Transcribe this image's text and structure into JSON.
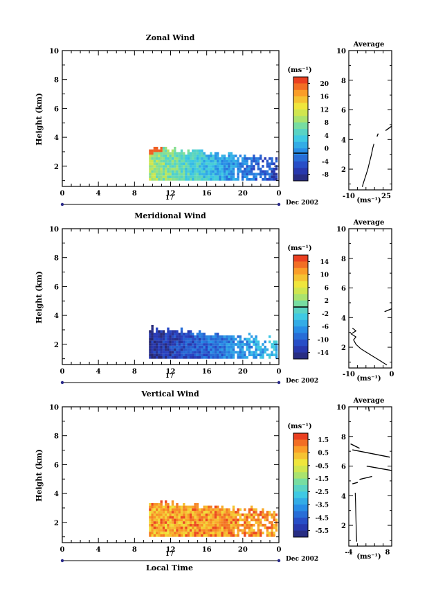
{
  "chart_data": [
    {
      "type": "heatmap",
      "title": "Zonal Wind",
      "ylabel": "Height (km)",
      "unit": "(ms⁻¹)",
      "xlim": [
        0,
        24
      ],
      "ylim": [
        0.6,
        10
      ],
      "xticks": [
        "0",
        "4",
        "8",
        "12",
        "16",
        "20",
        "0"
      ],
      "yticks": [
        "2",
        "4",
        "6",
        "8",
        "10"
      ],
      "colorbar": {
        "min": -8,
        "max": 22,
        "ticks": [
          "20",
          "16",
          "12",
          "8",
          "4",
          "0",
          "-4",
          "-8"
        ],
        "zero_line": 0
      },
      "date_bar": {
        "day": "17",
        "label": "Dec 2002"
      },
      "fields": {
        "h_top": [
          3.2,
          2.4
        ],
        "v_base": 10,
        "v_end": -4
      },
      "average": {
        "title": "Average",
        "xlim": [
          -10,
          25
        ],
        "xticks": [
          "-10",
          "25"
        ],
        "yticks": [
          "2",
          "4",
          "6",
          "8",
          "10"
        ],
        "xlabel": "(ms⁻¹)",
        "profile": [
          [
            1,
            0.8
          ],
          [
            2,
            1.1
          ],
          [
            4,
            1.6
          ],
          [
            5.5,
            2
          ],
          [
            7,
            2.5
          ],
          [
            8.5,
            3
          ],
          [
            9.5,
            3.4
          ],
          [
            10.5,
            3.7
          ]
        ],
        "segments": [
          [
            [
              13,
              4.2
            ],
            [
              14,
              4.4
            ]
          ],
          [
            [
              20,
              4.6
            ],
            [
              25,
              4.9
            ]
          ]
        ]
      }
    },
    {
      "type": "heatmap",
      "title": "Meridional Wind",
      "ylabel": "Height (km)",
      "unit": "(ms⁻¹)",
      "xlim": [
        0,
        24
      ],
      "ylim": [
        0.6,
        10
      ],
      "xticks": [
        "0",
        "4",
        "8",
        "12",
        "16",
        "20",
        "0"
      ],
      "yticks": [
        "2",
        "4",
        "6",
        "8",
        "10"
      ],
      "colorbar": {
        "min": -16,
        "max": 16,
        "ticks": [
          "14",
          "10",
          "6",
          "2",
          "-2",
          "-6",
          "-10",
          "-14"
        ],
        "zero_line": 0
      },
      "date_bar": {
        "day": "17",
        "label": "Dec 2002"
      },
      "fields": {
        "h_top": [
          3.0,
          2.3
        ],
        "v_base": -14,
        "v_end": -4
      },
      "average": {
        "title": "Average",
        "xlim": [
          -18,
          0
        ],
        "xticks": [
          "-10",
          "0"
        ],
        "yticks": [
          "2",
          "4",
          "6",
          "8",
          "10"
        ],
        "xlabel": "(ms⁻¹)",
        "profile": [
          [
            -2,
            0.8
          ],
          [
            -5,
            1.1
          ],
          [
            -9,
            1.5
          ],
          [
            -13,
            1.9
          ],
          [
            -15,
            2.2
          ],
          [
            -16,
            2.5
          ],
          [
            -15,
            2.7
          ],
          [
            -17,
            2.9
          ],
          [
            -15,
            3.1
          ],
          [
            -16.5,
            3.3
          ]
        ],
        "segments": [
          [
            [
              -3,
              4.4
            ],
            [
              0,
              4.6
            ]
          ]
        ]
      }
    },
    {
      "type": "heatmap",
      "title": "Vertical Wind",
      "ylabel": "Height (km)",
      "unit": "(ms⁻¹)",
      "xlim": [
        0,
        24
      ],
      "ylim": [
        0.6,
        10
      ],
      "xticks": [
        "0",
        "4",
        "8",
        "12",
        "16",
        "20",
        "0"
      ],
      "yticks": [
        "2",
        "4",
        "6",
        "8",
        "10"
      ],
      "colorbar": {
        "min": -7,
        "max": 2,
        "ticks": [
          "1.5",
          "0.5",
          "-0.5",
          "-1.5",
          "-2.5",
          "-3.5",
          "-4.5",
          "-5.5"
        ],
        "zero_line": null
      },
      "date_bar": {
        "day": "17",
        "label": "Dec 2002"
      },
      "xlabel": "Local Time",
      "fields": {
        "h_top": [
          3.3,
          2.7
        ],
        "v_base": 0.2,
        "v_end": 0.6
      },
      "average": {
        "title": "Average",
        "xlim": [
          -4,
          8
        ],
        "xticks": [
          "-4",
          "8"
        ],
        "yticks": [
          "2",
          "4",
          "6",
          "8",
          "10"
        ],
        "xlabel": "(ms⁻¹)",
        "profile": [
          [
            -1.8,
            0.9
          ],
          [
            -1.9,
            1.5
          ],
          [
            -2,
            2.5
          ],
          [
            -2.1,
            3.5
          ],
          [
            -2.2,
            4.2
          ]
        ],
        "segments": [
          [
            [
              -3,
              7.1
            ],
            [
              7.5,
              6.6
            ]
          ],
          [
            [
              -3.5,
              7.5
            ],
            [
              -1,
              7.2
            ]
          ],
          [
            [
              1,
              6
            ],
            [
              8,
              5.7
            ]
          ],
          [
            [
              -1,
              5.1
            ],
            [
              2.5,
              5.3
            ]
          ],
          [
            [
              -3,
              4.8
            ],
            [
              -1.5,
              4.9
            ]
          ],
          [
            [
              1.5,
              10
            ],
            [
              1.7,
              9.7
            ]
          ]
        ]
      }
    }
  ]
}
